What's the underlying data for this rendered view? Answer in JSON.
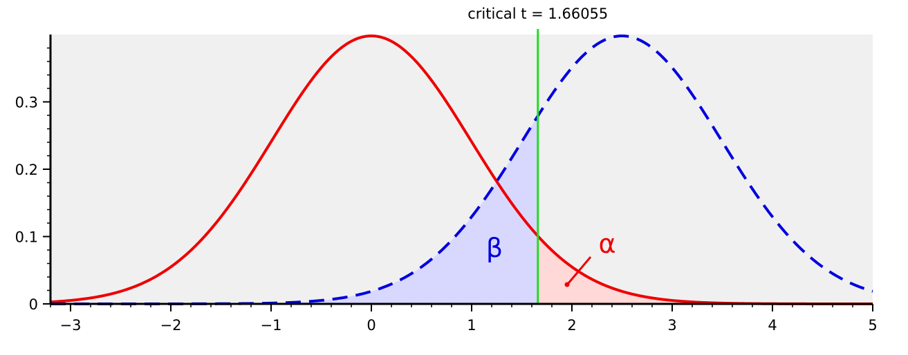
{
  "chart_data": {
    "type": "line",
    "title": "",
    "xlabel": "",
    "ylabel": "",
    "xlim": [
      -3.2,
      5
    ],
    "ylim": [
      0,
      0.4
    ],
    "x_ticks": [
      -3,
      -2,
      -1,
      0,
      1,
      2,
      3,
      4,
      5
    ],
    "x_tick_labels": [
      "−3",
      "−2",
      "−1",
      "0",
      "1",
      "2",
      "3",
      "4",
      "5"
    ],
    "y_ticks": [
      0,
      0.1,
      0.2,
      0.3
    ],
    "y_tick_labels": [
      "0",
      "0.1",
      "0.2",
      "0.3"
    ],
    "grid": false,
    "background": "#f0f0f0",
    "series": [
      {
        "distribution": "t",
        "df": 100,
        "center": 0,
        "color": "#ee0000",
        "style": "solid"
      },
      {
        "distribution": "t",
        "df": 100,
        "center": 2.5,
        "color": "#0000dd",
        "style": "dashed"
      }
    ],
    "critical_value": 1.66055,
    "critical_line_color": "#22dd22",
    "critical_label": "critical t = 1.66055",
    "shaded_regions": [
      {
        "label": "β",
        "under_series": 1,
        "from": -3.2,
        "to": 1.66055,
        "fill": "#d8d8ff",
        "text_color": "#0000dd"
      },
      {
        "label": "α",
        "under_series": 0,
        "from": 1.66055,
        "to": 5,
        "fill": "#ffd8d8",
        "text_color": "#ee0000"
      }
    ]
  }
}
